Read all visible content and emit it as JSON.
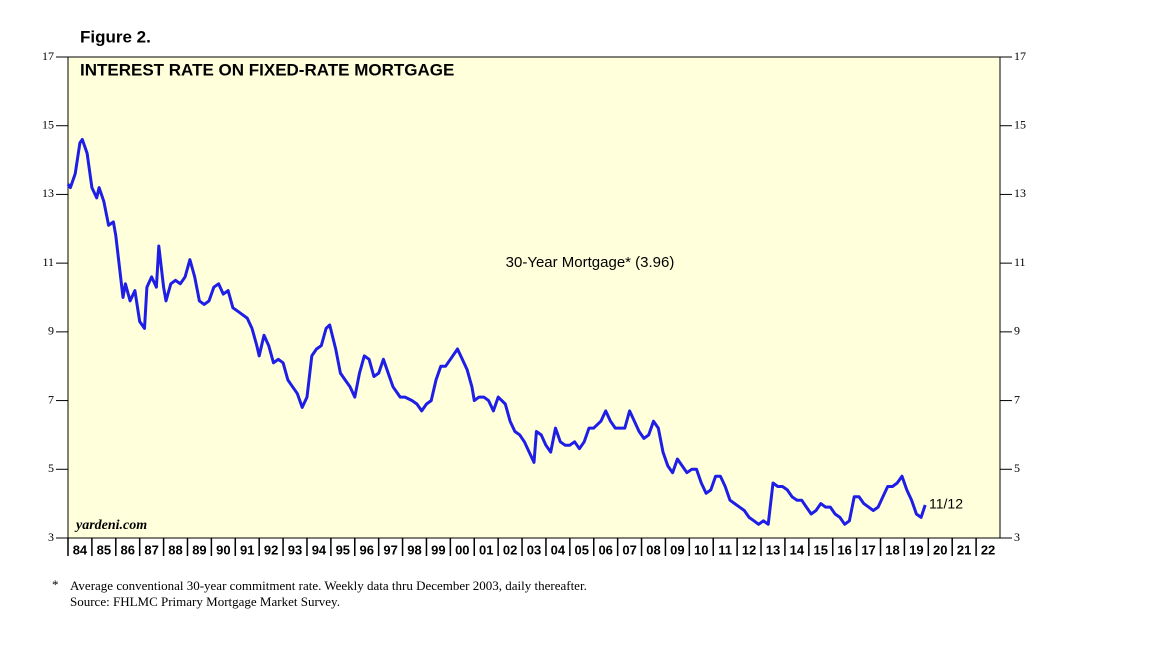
{
  "chart_data": {
    "type": "line",
    "figure_label": "Figure 2.",
    "title": "INTEREST RATE ON FIXED-RATE MORTGAGE",
    "source_credit": "yardeni.com",
    "footnote": "Average conventional 30-year commitment rate. Weekly data thru December 2003, daily thereafter.",
    "footnote_marker": "*",
    "source": "Source: FHLMC Primary Mortgage Market Survey.",
    "end_label": "11/12",
    "xlim": [
      1984,
      2023
    ],
    "xticks": [
      {
        "value": 1984,
        "label": "84"
      },
      {
        "value": 1985,
        "label": "85"
      },
      {
        "value": 1986,
        "label": "86"
      },
      {
        "value": 1987,
        "label": "87"
      },
      {
        "value": 1988,
        "label": "88"
      },
      {
        "value": 1989,
        "label": "89"
      },
      {
        "value": 1990,
        "label": "90"
      },
      {
        "value": 1991,
        "label": "91"
      },
      {
        "value": 1992,
        "label": "92"
      },
      {
        "value": 1993,
        "label": "93"
      },
      {
        "value": 1994,
        "label": "94"
      },
      {
        "value": 1995,
        "label": "95"
      },
      {
        "value": 1996,
        "label": "96"
      },
      {
        "value": 1997,
        "label": "97"
      },
      {
        "value": 1998,
        "label": "98"
      },
      {
        "value": 1999,
        "label": "99"
      },
      {
        "value": 2000,
        "label": "00"
      },
      {
        "value": 2001,
        "label": "01"
      },
      {
        "value": 2002,
        "label": "02"
      },
      {
        "value": 2003,
        "label": "03"
      },
      {
        "value": 2004,
        "label": "04"
      },
      {
        "value": 2005,
        "label": "05"
      },
      {
        "value": 2006,
        "label": "06"
      },
      {
        "value": 2007,
        "label": "07"
      },
      {
        "value": 2008,
        "label": "08"
      },
      {
        "value": 2009,
        "label": "09"
      },
      {
        "value": 2010,
        "label": "10"
      },
      {
        "value": 2011,
        "label": "11"
      },
      {
        "value": 2012,
        "label": "12"
      },
      {
        "value": 2013,
        "label": "13"
      },
      {
        "value": 2014,
        "label": "14"
      },
      {
        "value": 2015,
        "label": "15"
      },
      {
        "value": 2016,
        "label": "16"
      },
      {
        "value": 2017,
        "label": "17"
      },
      {
        "value": 2018,
        "label": "18"
      },
      {
        "value": 2019,
        "label": "19"
      },
      {
        "value": 2020,
        "label": "20"
      },
      {
        "value": 2021,
        "label": "21"
      },
      {
        "value": 2022,
        "label": "22"
      }
    ],
    "ylim": [
      3,
      17
    ],
    "yticks": [
      3,
      5,
      7,
      9,
      11,
      13,
      15,
      17
    ],
    "y2lim": [
      3,
      17
    ],
    "y2ticks": [
      3,
      5,
      7,
      9,
      11,
      13,
      15,
      17
    ],
    "x": [
      1984.0,
      1984.1,
      1984.3,
      1984.5,
      1984.6,
      1984.8,
      1985.0,
      1985.2,
      1985.3,
      1985.5,
      1985.7,
      1985.9,
      1986.0,
      1986.2,
      1986.3,
      1986.4,
      1986.6,
      1986.8,
      1987.0,
      1987.2,
      1987.3,
      1987.5,
      1987.7,
      1987.8,
      1988.0,
      1988.1,
      1988.3,
      1988.5,
      1988.7,
      1988.9,
      1989.1,
      1989.3,
      1989.5,
      1989.7,
      1989.9,
      1990.1,
      1990.3,
      1990.5,
      1990.7,
      1990.9,
      1991.1,
      1991.3,
      1991.5,
      1991.7,
      1991.9,
      1992.0,
      1992.2,
      1992.4,
      1992.6,
      1992.8,
      1993.0,
      1993.2,
      1993.4,
      1993.6,
      1993.8,
      1994.0,
      1994.2,
      1994.4,
      1994.6,
      1994.8,
      1994.95,
      1995.2,
      1995.4,
      1995.6,
      1995.8,
      1996.0,
      1996.2,
      1996.4,
      1996.6,
      1996.8,
      1997.0,
      1997.2,
      1997.4,
      1997.6,
      1997.9,
      1998.1,
      1998.4,
      1998.6,
      1998.8,
      1999.0,
      1999.2,
      1999.4,
      1999.6,
      1999.8,
      2000.0,
      2000.3,
      2000.5,
      2000.7,
      2000.9,
      2001.0,
      2001.2,
      2001.4,
      2001.6,
      2001.8,
      2002.0,
      2002.3,
      2002.5,
      2002.7,
      2002.9,
      2003.1,
      2003.3,
      2003.5,
      2003.6,
      2003.8,
      2004.0,
      2004.2,
      2004.4,
      2004.6,
      2004.8,
      2005.0,
      2005.2,
      2005.4,
      2005.6,
      2005.8,
      2006.0,
      2006.3,
      2006.5,
      2006.7,
      2006.9,
      2007.1,
      2007.3,
      2007.5,
      2007.7,
      2007.9,
      2008.1,
      2008.3,
      2008.5,
      2008.7,
      2008.9,
      2009.1,
      2009.3,
      2009.5,
      2009.7,
      2009.9,
      2010.1,
      2010.3,
      2010.5,
      2010.7,
      2010.9,
      2011.1,
      2011.3,
      2011.5,
      2011.7,
      2011.9,
      2012.1,
      2012.3,
      2012.5,
      2012.7,
      2012.9,
      2013.1,
      2013.3,
      2013.5,
      2013.7,
      2013.9,
      2014.1,
      2014.3,
      2014.5,
      2014.7,
      2014.9,
      2015.1,
      2015.3,
      2015.5,
      2015.7,
      2015.9,
      2016.1,
      2016.3,
      2016.5,
      2016.7,
      2016.9,
      2017.1,
      2017.3,
      2017.5,
      2017.7,
      2017.9,
      2018.1,
      2018.3,
      2018.5,
      2018.7,
      2018.9,
      2019.1,
      2019.3,
      2019.5,
      2019.7,
      2019.87
    ],
    "series": [
      {
        "name": "30-Year Mortgage* (3.96)",
        "color": "#1e1ee6",
        "values": [
          13.3,
          13.2,
          13.6,
          14.5,
          14.6,
          14.2,
          13.2,
          12.9,
          13.2,
          12.8,
          12.1,
          12.2,
          11.8,
          10.6,
          10.0,
          10.4,
          9.9,
          10.2,
          9.3,
          9.1,
          10.3,
          10.6,
          10.3,
          11.5,
          10.3,
          9.9,
          10.4,
          10.5,
          10.4,
          10.6,
          11.1,
          10.6,
          9.9,
          9.8,
          9.9,
          10.3,
          10.4,
          10.1,
          10.2,
          9.7,
          9.6,
          9.5,
          9.4,
          9.1,
          8.6,
          8.3,
          8.9,
          8.6,
          8.1,
          8.2,
          8.1,
          7.6,
          7.4,
          7.2,
          6.8,
          7.1,
          8.3,
          8.5,
          8.6,
          9.1,
          9.2,
          8.5,
          7.8,
          7.6,
          7.4,
          7.1,
          7.8,
          8.3,
          8.2,
          7.7,
          7.8,
          8.2,
          7.8,
          7.4,
          7.1,
          7.1,
          7.0,
          6.9,
          6.7,
          6.9,
          7.0,
          7.6,
          8.0,
          8.0,
          8.2,
          8.5,
          8.2,
          7.9,
          7.4,
          7.0,
          7.1,
          7.1,
          7.0,
          6.7,
          7.1,
          6.9,
          6.4,
          6.1,
          6.0,
          5.8,
          5.5,
          5.2,
          6.1,
          6.0,
          5.7,
          5.5,
          6.2,
          5.8,
          5.7,
          5.7,
          5.8,
          5.6,
          5.8,
          6.2,
          6.2,
          6.4,
          6.7,
          6.4,
          6.2,
          6.2,
          6.2,
          6.7,
          6.4,
          6.1,
          5.9,
          6.0,
          6.4,
          6.2,
          5.5,
          5.1,
          4.9,
          5.3,
          5.1,
          4.9,
          5.0,
          5.0,
          4.6,
          4.3,
          4.4,
          4.8,
          4.8,
          4.5,
          4.1,
          4.0,
          3.9,
          3.8,
          3.6,
          3.5,
          3.4,
          3.5,
          3.4,
          4.6,
          4.5,
          4.5,
          4.4,
          4.2,
          4.1,
          4.1,
          3.9,
          3.7,
          3.8,
          4.0,
          3.9,
          3.9,
          3.7,
          3.6,
          3.4,
          3.5,
          4.2,
          4.2,
          4.0,
          3.9,
          3.8,
          3.9,
          4.2,
          4.5,
          4.5,
          4.6,
          4.8,
          4.4,
          4.1,
          3.7,
          3.6,
          3.96
        ]
      }
    ]
  }
}
